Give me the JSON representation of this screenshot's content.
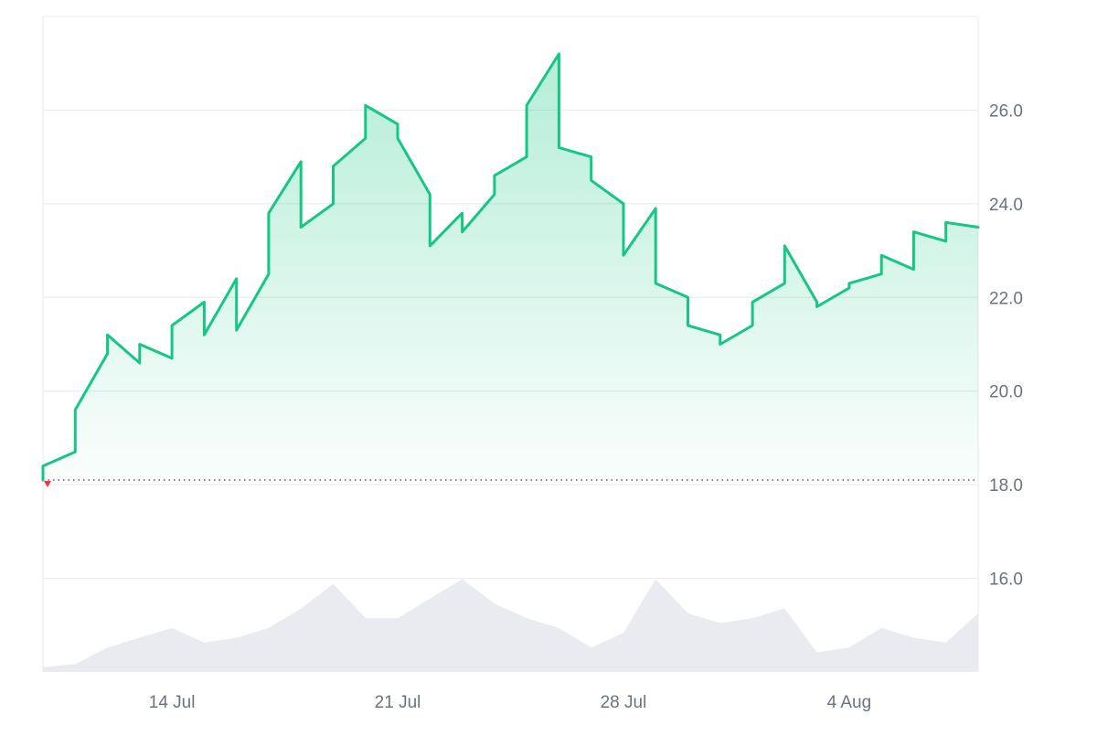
{
  "chart_data": {
    "type": "area",
    "title": "",
    "xlabel": "",
    "ylabel": "",
    "x_range": [
      "2024-07-10",
      "2024-08-08"
    ],
    "x_ticks": [
      "14 Jul",
      "21 Jul",
      "28 Jul",
      "4 Aug"
    ],
    "y_ticks": [
      "16.0",
      "18.0",
      "20.0",
      "22.0",
      "24.0",
      "26.0"
    ],
    "ylim": [
      14.0,
      28.0
    ],
    "grid": true,
    "reference_line": {
      "value": 18.1,
      "style": "dotted"
    },
    "colors": {
      "line": "#16c784",
      "area_top": "#16c784",
      "volume": "#e5e8ee",
      "grid": "#e6e8ec",
      "start_marker": "#ea3943",
      "tick_text": "#6b7280"
    },
    "series": [
      {
        "x": [
          "2024-07-10",
          "2024-07-10",
          "2024-07-11",
          "2024-07-11",
          "2024-07-11",
          "2024-07-12",
          "2024-07-12",
          "2024-07-13",
          "2024-07-13",
          "2024-07-14",
          "2024-07-14",
          "2024-07-15",
          "2024-07-15",
          "2024-07-16",
          "2024-07-16",
          "2024-07-17",
          "2024-07-17",
          "2024-07-18",
          "2024-07-18",
          "2024-07-19",
          "2024-07-19",
          "2024-07-20",
          "2024-07-20",
          "2024-07-21",
          "2024-07-21",
          "2024-07-22",
          "2024-07-22",
          "2024-07-23",
          "2024-07-23",
          "2024-07-24",
          "2024-07-24",
          "2024-07-25",
          "2024-07-25",
          "2024-07-26",
          "2024-07-26",
          "2024-07-27",
          "2024-07-27",
          "2024-07-28",
          "2024-07-28",
          "2024-07-29",
          "2024-07-29",
          "2024-07-30",
          "2024-07-30",
          "2024-07-31",
          "2024-07-31",
          "2024-08-01",
          "2024-08-01",
          "2024-08-02",
          "2024-08-02",
          "2024-08-03",
          "2024-08-03",
          "2024-08-04",
          "2024-08-04",
          "2024-08-05",
          "2024-08-05",
          "2024-08-06",
          "2024-08-06",
          "2024-08-07",
          "2024-08-07",
          "2024-08-08"
        ],
        "values": [
          18.1,
          18.4,
          18.7,
          19.5,
          19.6,
          20.8,
          21.2,
          20.6,
          21.0,
          20.7,
          21.4,
          21.9,
          21.2,
          22.4,
          21.3,
          22.5,
          23.8,
          24.9,
          23.5,
          24.0,
          24.8,
          25.4,
          26.1,
          25.7,
          25.4,
          24.2,
          23.1,
          23.8,
          23.4,
          24.2,
          24.6,
          25.0,
          26.1,
          27.2,
          25.2,
          25.0,
          24.5,
          24.0,
          22.9,
          23.9,
          22.3,
          22.0,
          21.4,
          21.2,
          21.0,
          21.4,
          21.9,
          22.3,
          23.1,
          21.9,
          21.8,
          22.2,
          22.3,
          22.5,
          22.9,
          22.6,
          23.4,
          23.2,
          23.6,
          23.5
        ]
      }
    ],
    "volume": {
      "x": [
        "2024-07-10",
        "2024-07-11",
        "2024-07-12",
        "2024-07-13",
        "2024-07-14",
        "2024-07-15",
        "2024-07-16",
        "2024-07-17",
        "2024-07-18",
        "2024-07-19",
        "2024-07-20",
        "2024-07-21",
        "2024-07-22",
        "2024-07-23",
        "2024-07-24",
        "2024-07-25",
        "2024-07-26",
        "2024-07-27",
        "2024-07-28",
        "2024-07-29",
        "2024-07-30",
        "2024-07-31",
        "2024-08-01",
        "2024-08-02",
        "2024-08-03",
        "2024-08-04",
        "2024-08-05",
        "2024-08-06",
        "2024-08-07",
        "2024-08-08"
      ],
      "values": [
        0.05,
        0.08,
        0.25,
        0.35,
        0.45,
        0.3,
        0.35,
        0.45,
        0.65,
        0.9,
        0.55,
        0.55,
        0.75,
        0.95,
        0.7,
        0.55,
        0.45,
        0.25,
        0.4,
        0.95,
        0.6,
        0.5,
        0.55,
        0.65,
        0.2,
        0.25,
        0.45,
        0.35,
        0.3,
        0.6
      ]
    }
  }
}
